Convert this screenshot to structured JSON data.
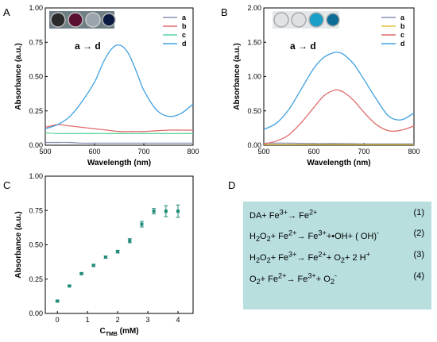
{
  "panels": {
    "A": {
      "label": "A",
      "legend_title": "a → d"
    },
    "B": {
      "label": "B",
      "legend_title": "a → d"
    },
    "C": {
      "label": "C"
    },
    "D": {
      "label": "D"
    }
  },
  "colors": {
    "a": "#8a8fb8",
    "b": "#e06a6a",
    "c": "#5dd6a0",
    "d": "#3fa0e0",
    "B_b": "#e2c23a",
    "C_marker": "#1f8a78"
  },
  "chart_data": [
    {
      "panel": "A",
      "type": "line",
      "xlabel": "Wavelength (nm)",
      "ylabel": "Absorbance (a.u.)",
      "xlim": [
        500,
        800
      ],
      "ylim": [
        0,
        1.0
      ],
      "xticks": [
        "500",
        "600",
        "700",
        "800"
      ],
      "yticks": [
        "0.00",
        "0.25",
        "0.50",
        "0.75",
        "1.00"
      ],
      "legend": [
        "a",
        "b",
        "c",
        "d"
      ],
      "series": [
        {
          "name": "a",
          "x": [
            500,
            525,
            550,
            575,
            600,
            625,
            650,
            675,
            700,
            725,
            750,
            775,
            800
          ],
          "y": [
            0.02,
            0.02,
            0.02,
            0.015,
            0.015,
            0.015,
            0.015,
            0.015,
            0.015,
            0.015,
            0.015,
            0.015,
            0.015
          ]
        },
        {
          "name": "b",
          "x": [
            500,
            525,
            550,
            575,
            600,
            625,
            650,
            675,
            700,
            725,
            750,
            775,
            800
          ],
          "y": [
            0.13,
            0.15,
            0.14,
            0.13,
            0.12,
            0.11,
            0.1,
            0.1,
            0.1,
            0.105,
            0.11,
            0.11,
            0.11
          ]
        },
        {
          "name": "c",
          "x": [
            500,
            525,
            550,
            575,
            600,
            625,
            650,
            675,
            700,
            725,
            750,
            775,
            800
          ],
          "y": [
            0.09,
            0.085,
            0.085,
            0.085,
            0.085,
            0.085,
            0.085,
            0.085,
            0.085,
            0.085,
            0.085,
            0.085,
            0.085
          ]
        },
        {
          "name": "d",
          "x": [
            500,
            525,
            550,
            575,
            600,
            610,
            620,
            630,
            640,
            650,
            660,
            670,
            680,
            690,
            700,
            725,
            750,
            775,
            800
          ],
          "y": [
            0.12,
            0.15,
            0.21,
            0.32,
            0.46,
            0.54,
            0.62,
            0.68,
            0.72,
            0.73,
            0.71,
            0.66,
            0.58,
            0.49,
            0.4,
            0.26,
            0.21,
            0.23,
            0.3
          ]
        }
      ]
    },
    {
      "panel": "B",
      "type": "line",
      "xlabel": "Wavelength (nm)",
      "ylabel": "Absorbance (a.u.)",
      "xlim": [
        500,
        800
      ],
      "ylim": [
        0,
        2.0
      ],
      "xticks": [
        "500",
        "600",
        "700",
        "800"
      ],
      "yticks": [
        "0.00",
        "0.50",
        "1.00",
        "1.50",
        "2.00"
      ],
      "legend": [
        "a",
        "b",
        "c",
        "d"
      ],
      "series": [
        {
          "name": "a",
          "x": [
            500,
            550,
            600,
            650,
            700,
            750,
            800
          ],
          "y": [
            0.03,
            0.03,
            0.025,
            0.025,
            0.02,
            0.02,
            0.02
          ]
        },
        {
          "name": "b",
          "x": [
            500,
            550,
            600,
            650,
            700,
            750,
            800
          ],
          "y": [
            0.01,
            0.01,
            0.01,
            0.01,
            0.01,
            0.01,
            0.01
          ]
        },
        {
          "name": "c",
          "x": [
            500,
            525,
            550,
            575,
            600,
            620,
            640,
            650,
            660,
            680,
            700,
            725,
            750,
            775,
            800
          ],
          "y": [
            0.02,
            0.06,
            0.15,
            0.33,
            0.55,
            0.72,
            0.8,
            0.8,
            0.77,
            0.65,
            0.48,
            0.3,
            0.21,
            0.22,
            0.28
          ]
        },
        {
          "name": "d",
          "x": [
            500,
            525,
            550,
            575,
            600,
            620,
            640,
            650,
            660,
            680,
            700,
            725,
            750,
            775,
            800
          ],
          "y": [
            0.23,
            0.32,
            0.52,
            0.82,
            1.12,
            1.28,
            1.35,
            1.35,
            1.32,
            1.18,
            0.96,
            0.67,
            0.42,
            0.37,
            0.47
          ]
        }
      ]
    },
    {
      "panel": "C",
      "type": "scatter",
      "xlabel": "C",
      "xlabel_sub": "TMB",
      "xlabel_unit": " (mM)",
      "ylabel": "Absorbance (a.u.)",
      "xlim": [
        -0.4,
        4.5
      ],
      "ylim": [
        0,
        1.0
      ],
      "xticks": [
        "0",
        "1",
        "2",
        "3",
        "4"
      ],
      "yticks": [
        "0.00",
        "0.25",
        "0.50",
        "0.75",
        "1.00"
      ],
      "points": {
        "x": [
          0,
          0.4,
          0.8,
          1.2,
          1.6,
          2.0,
          2.4,
          2.8,
          3.2,
          3.6,
          4.0
        ],
        "y": [
          0.09,
          0.2,
          0.29,
          0.35,
          0.41,
          0.45,
          0.53,
          0.65,
          0.745,
          0.745,
          0.745
        ],
        "err": [
          0.005,
          0.005,
          0.005,
          0.008,
          0.008,
          0.01,
          0.015,
          0.02,
          0.02,
          0.04,
          0.045
        ]
      }
    }
  ],
  "equations": [
    {
      "lhs": "DA+ Fe",
      "lhs_sup": "3+",
      "arrow": "→ Fe",
      "rhs_sup": "2+",
      "rest": "",
      "num": "(1)"
    },
    {
      "eq_html": "H<sub>2</sub>O<sub>2</sub>+ Fe<sup>2+</sup>→ Fe<sup>3+</sup>+•OH+ ( OH)<sup>-</sup>",
      "num": "(2)"
    },
    {
      "eq_html": "H<sub>2</sub>O<sub>2</sub>+ Fe<sup>3+</sup>→ Fe<sup>2+</sup>+ O<sub>2</sub>+ 2 H<sup>+</sup>",
      "num": "(3)"
    },
    {
      "eq_html": "O<sub>2</sub>+ Fe<sup>2+</sup>→ Fe<sup>3+</sup>+ O<sub>2</sub><sup>-</sup>",
      "num": "(4)"
    }
  ]
}
